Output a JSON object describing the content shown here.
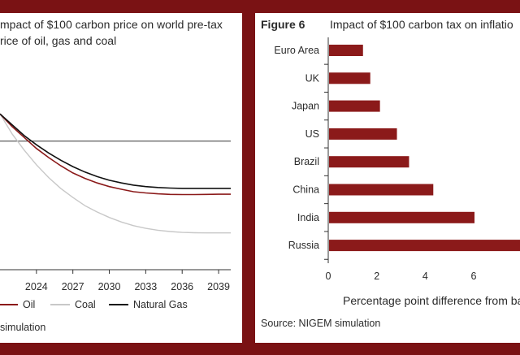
{
  "left": {
    "title_line1": "mpact of $100 carbon price on world pre-tax",
    "title_line2": "rice of oil, gas and coal",
    "source": "simulation",
    "colors": {
      "Oil": "#8b1a1a",
      "Coal": "#c8c8c8",
      "Natural Gas": "#111111"
    }
  },
  "right": {
    "figure_label": "Figure 6",
    "title": "Impact of $100 carbon tax on inflatio",
    "source": "Source: NIGEM simulation",
    "bar_color": "#8b1a1a"
  },
  "chart_data": [
    {
      "type": "line",
      "title": "mpact of $100 carbon price on world pre-tax rice of oil, gas and coal",
      "x": [
        2021,
        2022,
        2023,
        2024,
        2025,
        2026,
        2027,
        2028,
        2029,
        2030,
        2031,
        2032,
        2033,
        2034,
        2035,
        2036,
        2037,
        2038,
        2039,
        2040
      ],
      "xticks": [
        "2024",
        "2027",
        "2030",
        "2033",
        "2036",
        "2039"
      ],
      "xtick_values": [
        2024,
        2027,
        2030,
        2033,
        2036,
        2039
      ],
      "series": [
        {
          "name": "Oil",
          "values": [
            15,
            8,
            2,
            -4,
            -9,
            -13.5,
            -17.5,
            -20.5,
            -23,
            -25,
            -26.5,
            -27.8,
            -28.5,
            -29,
            -29.3,
            -29.4,
            -29.4,
            -29.3,
            -29.2,
            -29.2
          ]
        },
        {
          "name": "Coal",
          "values": [
            15,
            4,
            -5,
            -13,
            -20,
            -26,
            -31,
            -35.5,
            -39,
            -42,
            -44.5,
            -46.5,
            -48,
            -49,
            -49.7,
            -50.2,
            -50.4,
            -50.5,
            -50.5,
            -50.5
          ]
        },
        {
          "name": "Natural Gas",
          "values": [
            15,
            9,
            3,
            -2,
            -6.5,
            -10.5,
            -14,
            -17,
            -19.5,
            -21.5,
            -23,
            -24.2,
            -25,
            -25.5,
            -25.8,
            -26,
            -26,
            -26,
            -26,
            -26
          ]
        }
      ],
      "legend": [
        "Oil",
        "Coal",
        "Natural Gas"
      ],
      "legend_placement": "bottom",
      "ylim": [
        -60,
        20
      ],
      "xlabel": "",
      "ylabel": "",
      "grid": false
    },
    {
      "type": "bar",
      "orientation": "horizontal",
      "title": "Impact of $100 carbon tax on inflatio",
      "categories": [
        "Euro Area",
        "UK",
        "Japan",
        "US",
        "Brazil",
        "China",
        "India",
        "Russia"
      ],
      "values": [
        1.4,
        1.7,
        2.1,
        2.8,
        3.3,
        4.3,
        6.0,
        8.0
      ],
      "xticks": [
        "0",
        "2",
        "4",
        "6"
      ],
      "xtick_values": [
        0,
        2,
        4,
        6
      ],
      "xlabel": "Percentage point difference from ba",
      "xlim": [
        0,
        8
      ],
      "grid": false
    }
  ]
}
